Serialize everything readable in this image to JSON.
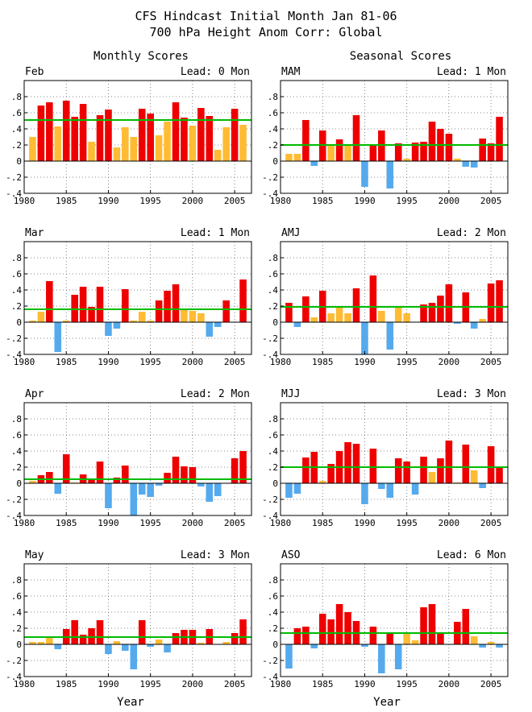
{
  "title_line1": "CFS Hindcast Initial Month Jan 81-06",
  "title_line2": "700 hPa Height Anom Corr: Global",
  "col_titles": [
    "Monthly Scores",
    "Seasonal Scores"
  ],
  "xlabel": "Year",
  "colors": {
    "high": "#ee0000",
    "mid": "#ffbb33",
    "neg": "#55aaee",
    "mean": "#00bb00",
    "grid": "#666666"
  },
  "chart_data": [
    {
      "type": "bar",
      "label": "Feb",
      "lead": "Lead: 0 Mon",
      "x": [
        1981,
        1982,
        1983,
        1984,
        1985,
        1986,
        1987,
        1988,
        1989,
        1990,
        1991,
        1992,
        1993,
        1994,
        1995,
        1996,
        1997,
        1998,
        1999,
        2000,
        2001,
        2002,
        2003,
        2004,
        2005,
        2006
      ],
      "values": [
        0.3,
        0.69,
        0.73,
        0.43,
        0.75,
        0.55,
        0.71,
        0.24,
        0.57,
        0.64,
        0.17,
        0.42,
        0.3,
        0.65,
        0.59,
        0.32,
        0.49,
        0.73,
        0.54,
        0.44,
        0.66,
        0.56,
        0.14,
        0.42,
        0.65,
        0.45
      ],
      "mean": 0.51,
      "xlim": [
        1980,
        2007
      ],
      "ylim": [
        -0.4,
        1.0
      ],
      "xticks": [
        1980,
        1985,
        1990,
        1995,
        2000,
        2005
      ],
      "yticks": [
        -0.4,
        -0.2,
        0,
        0.2,
        0.4,
        0.6,
        0.8
      ]
    },
    {
      "type": "bar",
      "label": "MAM",
      "lead": "Lead: 1 Mon",
      "x": [
        1981,
        1982,
        1983,
        1984,
        1985,
        1986,
        1987,
        1988,
        1989,
        1990,
        1991,
        1992,
        1993,
        1994,
        1995,
        1996,
        1997,
        1998,
        1999,
        2000,
        2001,
        2002,
        2003,
        2004,
        2005,
        2006
      ],
      "values": [
        0.09,
        0.09,
        0.51,
        -0.06,
        0.38,
        0.19,
        0.27,
        0.19,
        0.57,
        -0.32,
        0.21,
        0.38,
        -0.34,
        0.22,
        0.03,
        0.23,
        0.24,
        0.49,
        0.4,
        0.34,
        0.03,
        -0.07,
        -0.08,
        0.28,
        0.22,
        0.55
      ],
      "mean": 0.2,
      "xlim": [
        1980,
        2007
      ],
      "ylim": [
        -0.4,
        1.0
      ],
      "xticks": [
        1980,
        1985,
        1990,
        1995,
        2000,
        2005
      ],
      "yticks": [
        -0.4,
        -0.2,
        0,
        0.2,
        0.4,
        0.6,
        0.8
      ]
    },
    {
      "type": "bar",
      "label": "Mar",
      "lead": "Lead: 1 Mon",
      "x": [
        1981,
        1982,
        1983,
        1984,
        1985,
        1986,
        1987,
        1988,
        1989,
        1990,
        1991,
        1992,
        1993,
        1994,
        1995,
        1996,
        1997,
        1998,
        1999,
        2000,
        2001,
        2002,
        2003,
        2004,
        2005,
        2006
      ],
      "values": [
        0.02,
        0.13,
        0.51,
        -0.37,
        0.02,
        0.34,
        0.44,
        0.19,
        0.44,
        -0.17,
        -0.08,
        0.41,
        0.02,
        0.13,
        0.02,
        0.27,
        0.39,
        0.47,
        0.16,
        0.14,
        0.11,
        -0.18,
        -0.06,
        0.27,
        0.0,
        0.53
      ],
      "mean": 0.16,
      "xlim": [
        1980,
        2007
      ],
      "ylim": [
        -0.4,
        1.0
      ],
      "xticks": [
        1980,
        1985,
        1990,
        1995,
        2000,
        2005
      ],
      "yticks": [
        -0.4,
        -0.2,
        0,
        0.2,
        0.4,
        0.6,
        0.8
      ]
    },
    {
      "type": "bar",
      "label": "AMJ",
      "lead": "Lead: 2 Mon",
      "x": [
        1981,
        1982,
        1983,
        1984,
        1985,
        1986,
        1987,
        1988,
        1989,
        1990,
        1991,
        1992,
        1993,
        1994,
        1995,
        1996,
        1997,
        1998,
        1999,
        2000,
        2001,
        2002,
        2003,
        2004,
        2005,
        2006
      ],
      "values": [
        0.24,
        -0.06,
        0.32,
        0.06,
        0.39,
        0.11,
        0.19,
        0.11,
        0.42,
        -0.4,
        0.58,
        0.14,
        -0.34,
        0.19,
        0.11,
        0.0,
        0.22,
        0.24,
        0.33,
        0.47,
        -0.02,
        0.37,
        -0.08,
        0.04,
        0.48,
        0.52
      ],
      "mean": 0.19,
      "xlim": [
        1980,
        2007
      ],
      "ylim": [
        -0.4,
        1.0
      ],
      "xticks": [
        1980,
        1985,
        1990,
        1995,
        2000,
        2005
      ],
      "yticks": [
        -0.4,
        -0.2,
        0,
        0.2,
        0.4,
        0.6,
        0.8
      ]
    },
    {
      "type": "bar",
      "label": "Apr",
      "lead": "Lead: 2 Mon",
      "x": [
        1981,
        1982,
        1983,
        1984,
        1985,
        1986,
        1987,
        1988,
        1989,
        1990,
        1991,
        1992,
        1993,
        1994,
        1995,
        1996,
        1997,
        1998,
        1999,
        2000,
        2001,
        2002,
        2003,
        2004,
        2005,
        2006
      ],
      "values": [
        0.03,
        0.1,
        0.14,
        -0.13,
        0.36,
        0.01,
        0.11,
        0.06,
        0.27,
        -0.31,
        0.07,
        0.22,
        -0.4,
        -0.14,
        -0.17,
        -0.03,
        0.13,
        0.33,
        0.21,
        0.2,
        -0.04,
        -0.23,
        -0.16,
        0.0,
        0.31,
        0.4
      ],
      "mean": 0.05,
      "xlim": [
        1980,
        2007
      ],
      "ylim": [
        -0.4,
        1.0
      ],
      "xticks": [
        1980,
        1985,
        1990,
        1995,
        2000,
        2005
      ],
      "yticks": [
        -0.4,
        -0.2,
        0,
        0.2,
        0.4,
        0.6,
        0.8
      ]
    },
    {
      "type": "bar",
      "label": "MJJ",
      "lead": "Lead: 3 Mon",
      "x": [
        1981,
        1982,
        1983,
        1984,
        1985,
        1986,
        1987,
        1988,
        1989,
        1990,
        1991,
        1992,
        1993,
        1994,
        1995,
        1996,
        1997,
        1998,
        1999,
        2000,
        2001,
        2002,
        2003,
        2004,
        2005,
        2006
      ],
      "values": [
        -0.18,
        -0.13,
        0.32,
        0.39,
        0.03,
        0.24,
        0.4,
        0.51,
        0.49,
        -0.26,
        0.43,
        -0.07,
        -0.18,
        0.31,
        0.27,
        -0.14,
        0.33,
        0.14,
        0.31,
        0.53,
        0.01,
        0.48,
        0.16,
        -0.06,
        0.46,
        0.21
      ],
      "mean": 0.2,
      "xlim": [
        1980,
        2007
      ],
      "ylim": [
        -0.4,
        1.0
      ],
      "xticks": [
        1980,
        1985,
        1990,
        1995,
        2000,
        2005
      ],
      "yticks": [
        -0.4,
        -0.2,
        0,
        0.2,
        0.4,
        0.6,
        0.8
      ]
    },
    {
      "type": "bar",
      "label": "May",
      "lead": "Lead: 3 Mon",
      "x": [
        1981,
        1982,
        1983,
        1984,
        1985,
        1986,
        1987,
        1988,
        1989,
        1990,
        1991,
        1992,
        1993,
        1994,
        1995,
        1996,
        1997,
        1998,
        1999,
        2000,
        2001,
        2002,
        2003,
        2004,
        2005,
        2006
      ],
      "values": [
        0.03,
        0.03,
        0.09,
        -0.06,
        0.19,
        0.3,
        0.12,
        0.2,
        0.3,
        -0.12,
        0.04,
        -0.08,
        -0.31,
        0.3,
        -0.03,
        0.06,
        -0.1,
        0.14,
        0.18,
        0.18,
        0.02,
        0.19,
        0.0,
        0.03,
        0.14,
        0.31
      ],
      "mean": 0.09,
      "xlim": [
        1980,
        2007
      ],
      "ylim": [
        -0.4,
        1.0
      ],
      "xticks": [
        1980,
        1985,
        1990,
        1995,
        2000,
        2005
      ],
      "yticks": [
        -0.4,
        -0.2,
        0,
        0.2,
        0.4,
        0.6,
        0.8
      ]
    },
    {
      "type": "bar",
      "label": "ASO",
      "lead": "Lead: 6 Mon",
      "x": [
        1981,
        1982,
        1983,
        1984,
        1985,
        1986,
        1987,
        1988,
        1989,
        1990,
        1991,
        1992,
        1993,
        1994,
        1995,
        1996,
        1997,
        1998,
        1999,
        2000,
        2001,
        2002,
        2003,
        2004,
        2005,
        2006
      ],
      "values": [
        -0.3,
        0.2,
        0.22,
        -0.05,
        0.38,
        0.31,
        0.5,
        0.4,
        0.29,
        -0.03,
        0.22,
        -0.36,
        0.15,
        -0.31,
        0.13,
        0.05,
        0.46,
        0.5,
        0.15,
        0.0,
        0.28,
        0.44,
        0.1,
        -0.04,
        0.03,
        -0.04
      ],
      "mean": 0.14,
      "xlim": [
        1980,
        2007
      ],
      "ylim": [
        -0.4,
        1.0
      ],
      "xticks": [
        1980,
        1985,
        1990,
        1995,
        2000,
        2005
      ],
      "yticks": [
        -0.4,
        -0.2,
        0,
        0.2,
        0.4,
        0.6,
        0.8
      ]
    }
  ]
}
